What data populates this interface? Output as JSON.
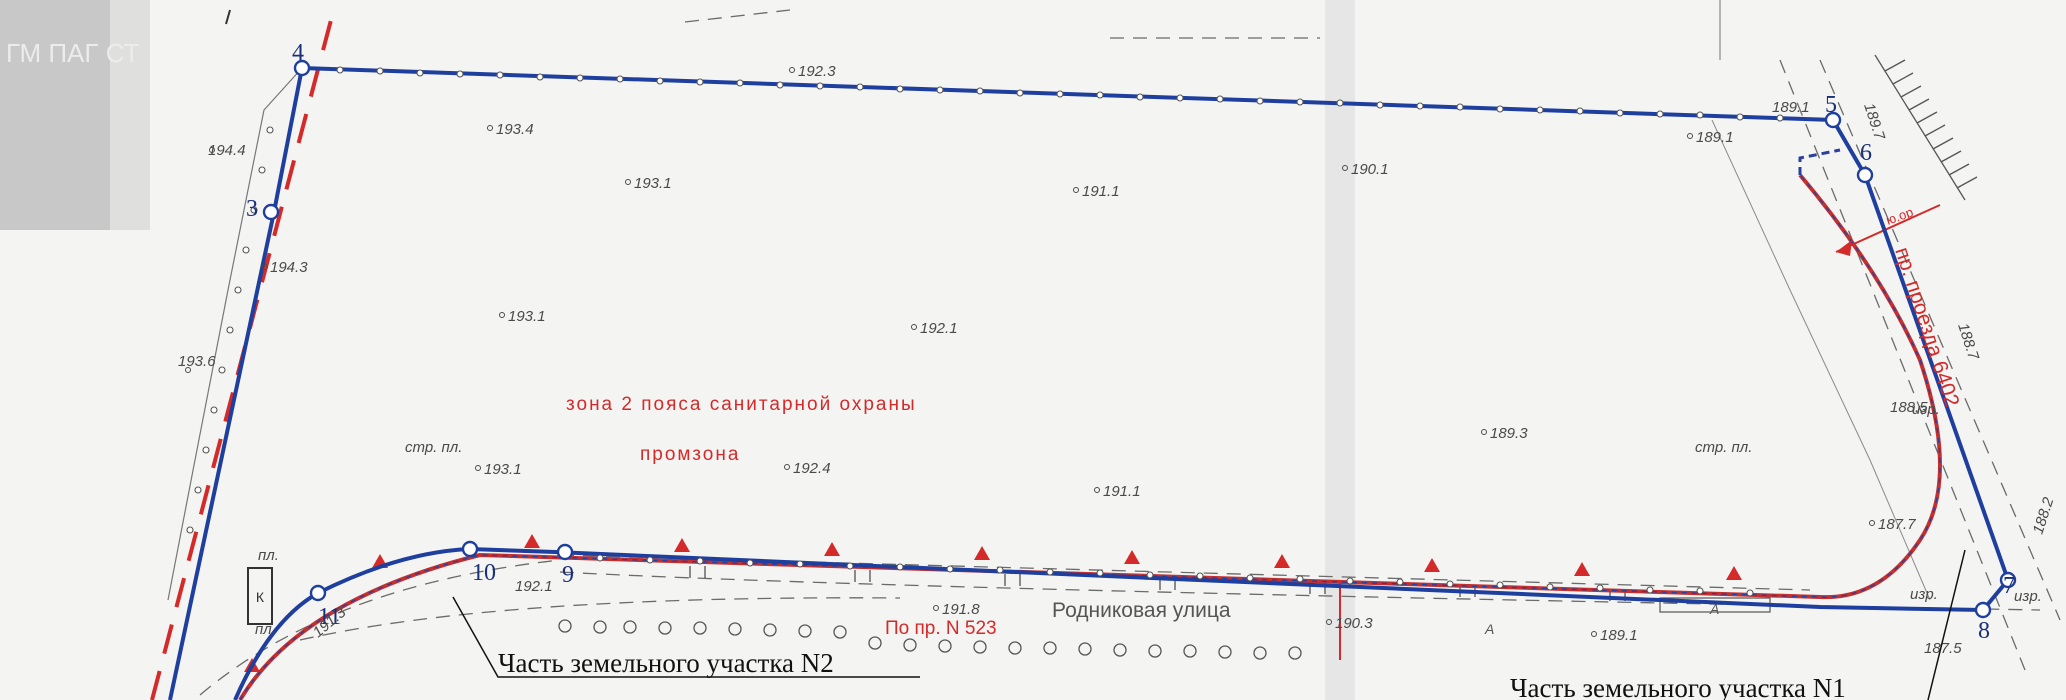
{
  "labels": {
    "zone_text": "зона 2 пояса санитарной охраны",
    "promzona": "промзона",
    "proezd": "пр. проезда 6402",
    "red_small": "ю.ор",
    "street_name": "Родниковая улица",
    "street_code": "По пр. N 523",
    "plot_n1": "Часть земельного участка N1",
    "plot_n2": "Часть земельного участка N2",
    "str_pl": "стр. пл.",
    "pl": "пл.",
    "izr": "изр.",
    "fragment_left": "ГМ ПАГ СТ",
    "bldg_letter": "К",
    "a_mark": "А"
  },
  "vertices": [
    {
      "num": "3"
    },
    {
      "num": "4"
    },
    {
      "num": "5"
    },
    {
      "num": "6"
    },
    {
      "num": "7"
    },
    {
      "num": "8"
    },
    {
      "num": "9"
    },
    {
      "num": "10"
    },
    {
      "num": "11"
    }
  ],
  "elevations": [
    "192.3",
    "193.4",
    "194.4",
    "193.1",
    "191.1",
    "190.1",
    "189.1",
    "189.1",
    "194.3",
    "193.1",
    "192.1",
    "193.6",
    "189.3",
    "188.5",
    "193.1",
    "192.4",
    "191.1",
    "187.7",
    "188.2",
    "192.1",
    "191.8",
    "190.3",
    "189.1",
    "187.5",
    "191.3",
    "188.7",
    "189.7"
  ],
  "colors": {
    "boundary": "#1f3f9e",
    "red_line": "#d42a2a",
    "survey": "#666666"
  }
}
